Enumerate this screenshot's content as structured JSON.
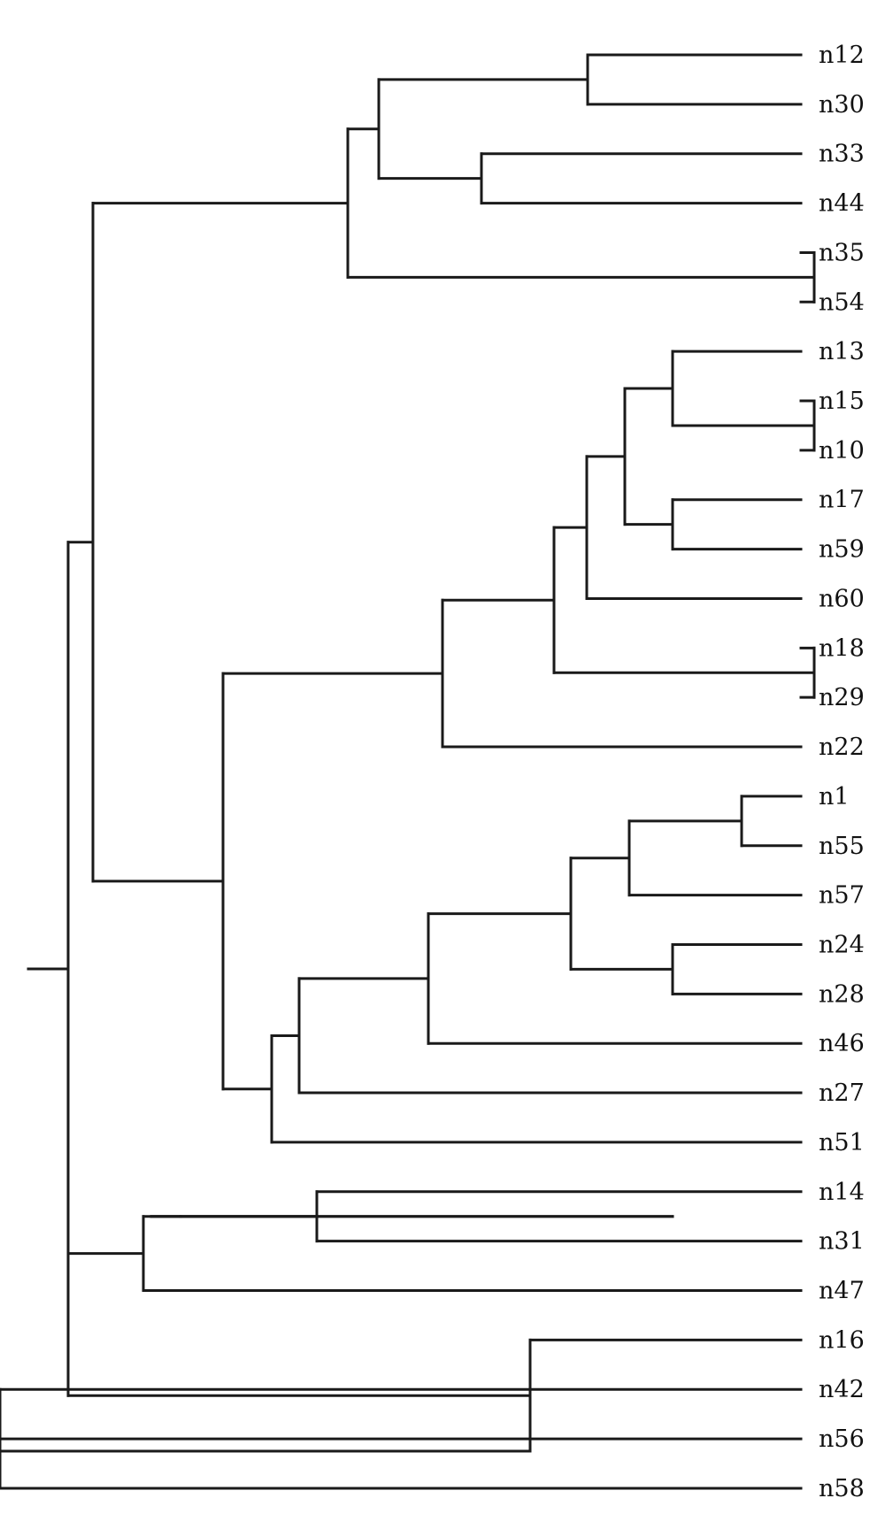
{
  "diagram": {
    "type": "dendrogram",
    "orientation": "left-to-right",
    "leaves": [
      "n12",
      "n30",
      "n33",
      "n44",
      "n35",
      "n54",
      "n13",
      "n15",
      "n10",
      "n17",
      "n59",
      "n60",
      "n18",
      "n29",
      "n22",
      "n1",
      "n55",
      "n57",
      "n24",
      "n28",
      "n46",
      "n27",
      "n51",
      "n14",
      "n31",
      "n47",
      "n16",
      "n42",
      "n56",
      "n58"
    ],
    "tree": {
      "children": [
        {
          "children": [
            {
              "children": [
                {
                  "children": [
                    {
                      "children": [
                        {
                          "leaf": "n12"
                        },
                        {
                          "leaf": "n30"
                        }
                      ]
                    },
                    {
                      "children": [
                        {
                          "leaf": "n33"
                        },
                        {
                          "leaf": "n44"
                        }
                      ]
                    }
                  ]
                },
                {
                  "children": [
                    {
                      "leaf": "n35"
                    },
                    {
                      "leaf": "n54"
                    }
                  ]
                }
              ]
            },
            {
              "children": [
                {
                  "children": [
                    {
                      "children": [
                        {
                          "children": [
                            {
                              "children": [
                                {
                                  "children": [
                                    {
                                      "leaf": "n13"
                                    },
                                    {
                                      "children": [
                                        {
                                          "leaf": "n15"
                                        },
                                        {
                                          "leaf": "n10"
                                        }
                                      ]
                                    }
                                  ]
                                },
                                {
                                  "children": [
                                    {
                                      "leaf": "n17"
                                    },
                                    {
                                      "leaf": "n59"
                                    }
                                  ]
                                }
                              ]
                            },
                            {
                              "leaf": "n60"
                            }
                          ]
                        },
                        {
                          "children": [
                            {
                              "leaf": "n18"
                            },
                            {
                              "leaf": "n29"
                            }
                          ]
                        }
                      ]
                    },
                    {
                      "leaf": "n22"
                    }
                  ]
                },
                {
                  "children": [
                    {
                      "children": [
                        {
                          "children": [
                            {
                              "children": [
                                {
                                  "children": [
                                    {
                                      "children": [
                                        {
                                          "leaf": "n1"
                                        },
                                        {
                                          "leaf": "n55"
                                        }
                                      ]
                                    },
                                    {
                                      "leaf": "n57"
                                    }
                                  ]
                                },
                                {
                                  "children": [
                                    {
                                      "leaf": "n24"
                                    },
                                    {
                                      "leaf": "n28"
                                    }
                                  ]
                                }
                              ]
                            },
                            {
                              "leaf": "n46"
                            }
                          ]
                        },
                        {
                          "leaf": "n27"
                        }
                      ]
                    },
                    {
                      "leaf": "n51"
                    }
                  ]
                }
              ]
            }
          ]
        },
        {
          "children": [
            {
              "children": [
                {
                  "children": [
                    {
                      "children": [
                        {
                          "children": [
                            {
                              "leaf": "n14"
                            },
                            {
                              "leaf": "n31"
                            }
                          ]
                        }
                      ]
                    }
                  ]
                }
              ]
            },
            {
              "leaf": "n47"
            }
          ]
        },
        {
          "children": [
            {
              "leaf": "n16"
            },
            {
              "children": [
                {
                  "children": [
                    {
                      "leaf": "n42"
                    },
                    {
                      "leaf": "n56"
                    }
                  ]
                },
                {
                  "leaf": "n58"
                }
              ]
            }
          ]
        }
      ]
    }
  }
}
